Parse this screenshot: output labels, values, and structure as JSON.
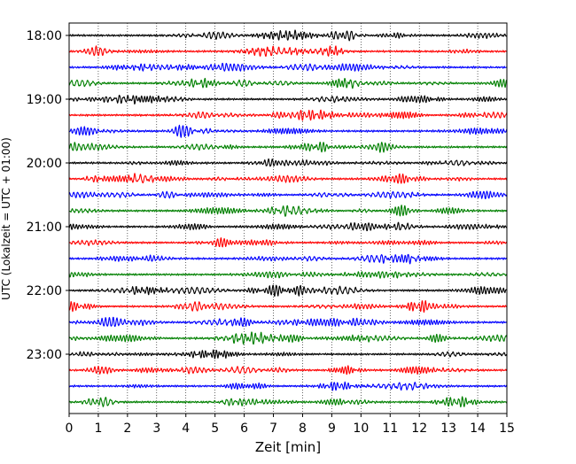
{
  "chart_data": {
    "type": "line",
    "title": "",
    "xlabel": "Zeit  [min]",
    "ylabel": "UTC (Lokalzeit = UTC + 01:00)",
    "xlim": [
      0,
      15
    ],
    "x_ticks": [
      "0",
      "1",
      "2",
      "3",
      "4",
      "5",
      "6",
      "7",
      "8",
      "9",
      "10",
      "11",
      "12",
      "13",
      "14",
      "15"
    ],
    "y_tick_labels": [
      "18:00",
      "19:00",
      "20:00",
      "21:00",
      "22:00",
      "23:00"
    ],
    "trace_start_times": [
      "18:00",
      "18:15",
      "18:30",
      "18:45",
      "19:00",
      "19:15",
      "19:30",
      "19:45",
      "20:00",
      "20:15",
      "20:30",
      "20:45",
      "21:00",
      "21:15",
      "21:30",
      "21:45",
      "22:00",
      "22:15",
      "22:30",
      "22:45",
      "23:00",
      "23:15",
      "23:30",
      "23:45"
    ],
    "trace_length_min": 15,
    "trace_colors": [
      "#000000",
      "#ff0000",
      "#0000ff",
      "#008000"
    ],
    "grid": "vertical dotted lines at each minute",
    "legend": "none"
  }
}
